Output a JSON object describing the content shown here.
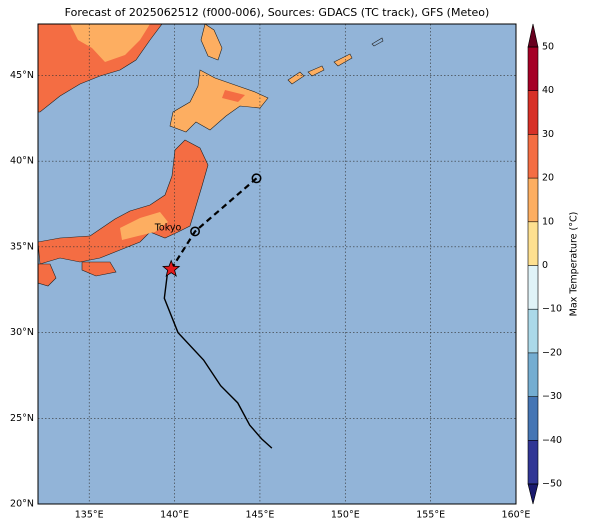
{
  "chart_data": {
    "type": "map",
    "title": "Forecast of 2025062512 (f000-006), Sources: GDACS (TC track), GFS (Meteo)",
    "ocean_color": "#92b4d8",
    "xlim": [
      132,
      160
    ],
    "ylim": [
      20,
      48
    ],
    "xticks": [
      {
        "value": 135,
        "label": "135°E"
      },
      {
        "value": 140,
        "label": "140°E"
      },
      {
        "value": 145,
        "label": "145°E"
      },
      {
        "value": 150,
        "label": "150°E"
      },
      {
        "value": 155,
        "label": "155°E"
      },
      {
        "value": 160,
        "label": "160°E"
      }
    ],
    "yticks": [
      {
        "value": 20,
        "label": "20°N"
      },
      {
        "value": 25,
        "label": "25°N"
      },
      {
        "value": 30,
        "label": "30°N"
      },
      {
        "value": 35,
        "label": "35°N"
      },
      {
        "value": 40,
        "label": "40°N"
      },
      {
        "value": 45,
        "label": "45°N"
      }
    ],
    "grid": true,
    "past_track": {
      "lon": [
        145.7,
        145.1,
        144.4,
        143.7,
        142.7,
        141.7,
        140.2,
        139.4,
        139.6
      ],
      "lat": [
        23.26,
        23.8,
        24.6,
        25.9,
        26.9,
        28.4,
        30.0,
        32.0,
        33.6
      ],
      "color": "#000000"
    },
    "forecast_track": {
      "lon": [
        139.8,
        141.2,
        144.8
      ],
      "lat": [
        33.7,
        35.9,
        39.0
      ],
      "color": "#000000"
    },
    "current_position": {
      "lon": 139.8,
      "lat": 33.7,
      "color": "#e41a1c"
    },
    "annotation": "Tokyo",
    "colorbar": {
      "label": "Max Temperature (°C)",
      "ticks": [
        {
          "value": -50,
          "label": "−50"
        },
        {
          "value": -40,
          "label": "−40"
        },
        {
          "value": -30,
          "label": "−30"
        },
        {
          "value": -20,
          "label": "−20"
        },
        {
          "value": -10,
          "label": "−10"
        },
        0,
        10,
        20,
        30,
        40,
        50
      ],
      "colors": [
        "#313695",
        "#4575b4",
        "#74add1",
        "#abd9e9",
        "#e0f3f8",
        "#fee090",
        "#fdae61",
        "#f46d43",
        "#d73027",
        "#a50026"
      ],
      "under_color": "#1a1a6e",
      "over_color": "#67001f"
    }
  }
}
